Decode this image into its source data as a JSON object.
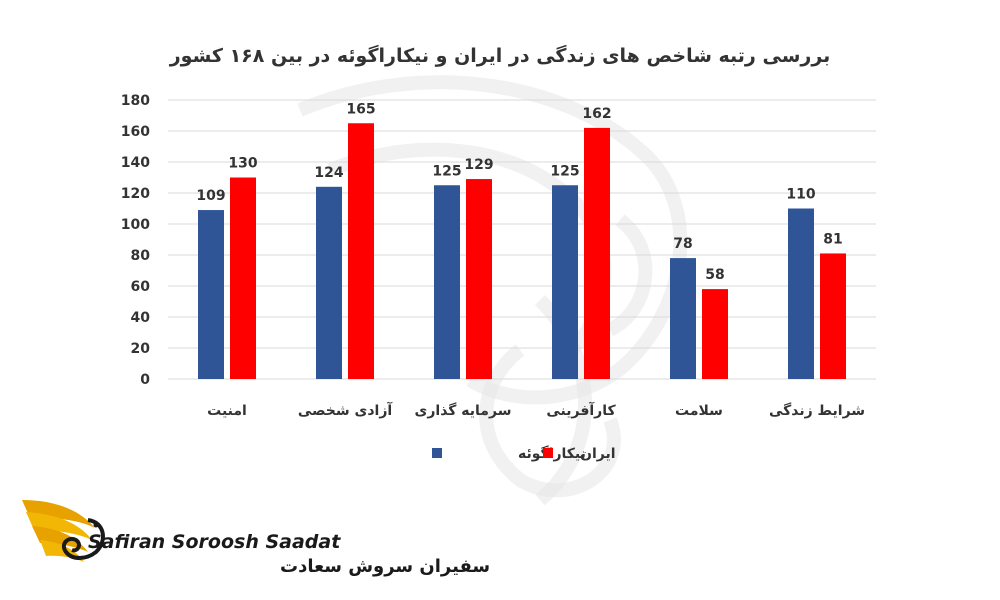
{
  "chart_data": {
    "type": "bar",
    "title": "بررسی رتبه شاخص های زندگی در ایران و نیکاراگوئه در بین ۱۶۸ کشور",
    "categories": [
      "امنیت",
      "آزادی شخصی",
      "سرمایه گذاری",
      "کارآفرینی",
      "سلامت",
      "شرایط زندگی"
    ],
    "series": [
      {
        "name": "نیکاراگوئه",
        "color": "#2f5597",
        "values": [
          109,
          124,
          125,
          125,
          78,
          110
        ]
      },
      {
        "name": "ایران",
        "color": "#ff0000",
        "values": [
          130,
          165,
          129,
          162,
          58,
          81
        ]
      }
    ],
    "ylim": [
      0,
      180
    ],
    "yticks": [
      0,
      20,
      40,
      60,
      80,
      100,
      120,
      140,
      160,
      180
    ],
    "xlabel": "",
    "ylabel": "",
    "grid": true,
    "legend_position": "bottom",
    "data_labels": true
  },
  "logo": {
    "latin_text": "Safiran Soroosh Saadat",
    "persian_text": "سفیران سروش سعادت",
    "gold_color": "#e8a200"
  }
}
